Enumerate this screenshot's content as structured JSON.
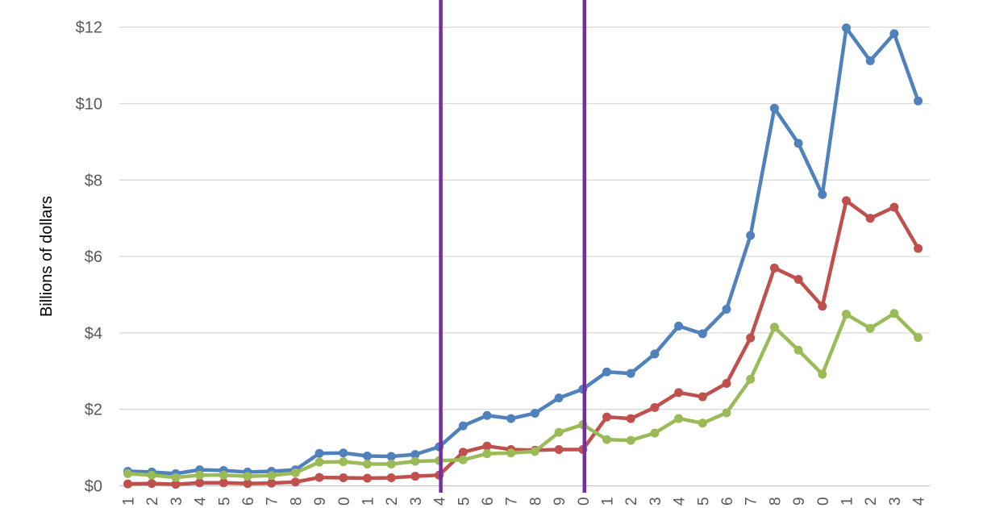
{
  "chart_data": {
    "type": "line",
    "title": "",
    "xlabel": "",
    "ylabel": "Billions of dollars",
    "ylim": [
      0,
      12
    ],
    "grid": true,
    "legend": "none",
    "y_ticks": [
      {
        "value": 0,
        "label": "$0"
      },
      {
        "value": 2,
        "label": "$2"
      },
      {
        "value": 4,
        "label": "$4"
      },
      {
        "value": 6,
        "label": "$6"
      },
      {
        "value": 8,
        "label": "$8"
      },
      {
        "value": 10,
        "label": "$10"
      },
      {
        "value": 12,
        "label": "$12"
      }
    ],
    "x_tick_labels": [
      "1",
      "2",
      "3",
      "4",
      "5",
      "6",
      "7",
      "8",
      "9",
      "0",
      "1",
      "2",
      "3",
      "4",
      "5",
      "6",
      "7",
      "8",
      "9",
      "0",
      "1",
      "2",
      "3",
      "4",
      "5",
      "6",
      "7",
      "8",
      "9",
      "0",
      "1",
      "2",
      "3",
      "4"
    ],
    "series": [
      {
        "name": "series-blue",
        "color": "#4F81BD",
        "values": [
          0.38,
          0.36,
          0.32,
          0.42,
          0.4,
          0.36,
          0.38,
          0.42,
          0.85,
          0.86,
          0.78,
          0.77,
          0.82,
          1.02,
          1.57,
          1.84,
          1.76,
          1.9,
          2.3,
          2.53,
          2.98,
          2.94,
          3.45,
          4.18,
          3.98,
          4.62,
          6.55,
          9.88,
          8.96,
          7.62,
          11.98,
          11.12,
          11.83,
          10.07
        ]
      },
      {
        "name": "series-red",
        "color": "#C0504D",
        "values": [
          0.05,
          0.06,
          0.04,
          0.08,
          0.08,
          0.06,
          0.07,
          0.1,
          0.22,
          0.21,
          0.2,
          0.21,
          0.25,
          0.28,
          0.88,
          1.04,
          0.95,
          0.93,
          0.95,
          0.95,
          1.8,
          1.76,
          2.05,
          2.44,
          2.33,
          2.68,
          3.87,
          5.7,
          5.4,
          4.7,
          7.46,
          7.0,
          7.29,
          6.21
        ]
      },
      {
        "name": "series-green",
        "color": "#9BBB59",
        "values": [
          0.32,
          0.28,
          0.22,
          0.28,
          0.28,
          0.25,
          0.27,
          0.34,
          0.62,
          0.63,
          0.57,
          0.57,
          0.64,
          0.66,
          0.68,
          0.84,
          0.86,
          0.9,
          1.4,
          1.6,
          1.21,
          1.19,
          1.38,
          1.76,
          1.64,
          1.91,
          2.79,
          4.15,
          3.55,
          2.92,
          4.49,
          4.12,
          4.51,
          3.88
        ]
      }
    ],
    "vlines": [
      {
        "at_point": 14,
        "color": "#7030A0"
      },
      {
        "at_point": 20,
        "color": "#7030A0"
      }
    ]
  },
  "style": {
    "background": "#FFFFFF",
    "gridline_color": "#D9D9D9",
    "zero_line_color": "#C3C3C3",
    "text_color": "#595959"
  }
}
